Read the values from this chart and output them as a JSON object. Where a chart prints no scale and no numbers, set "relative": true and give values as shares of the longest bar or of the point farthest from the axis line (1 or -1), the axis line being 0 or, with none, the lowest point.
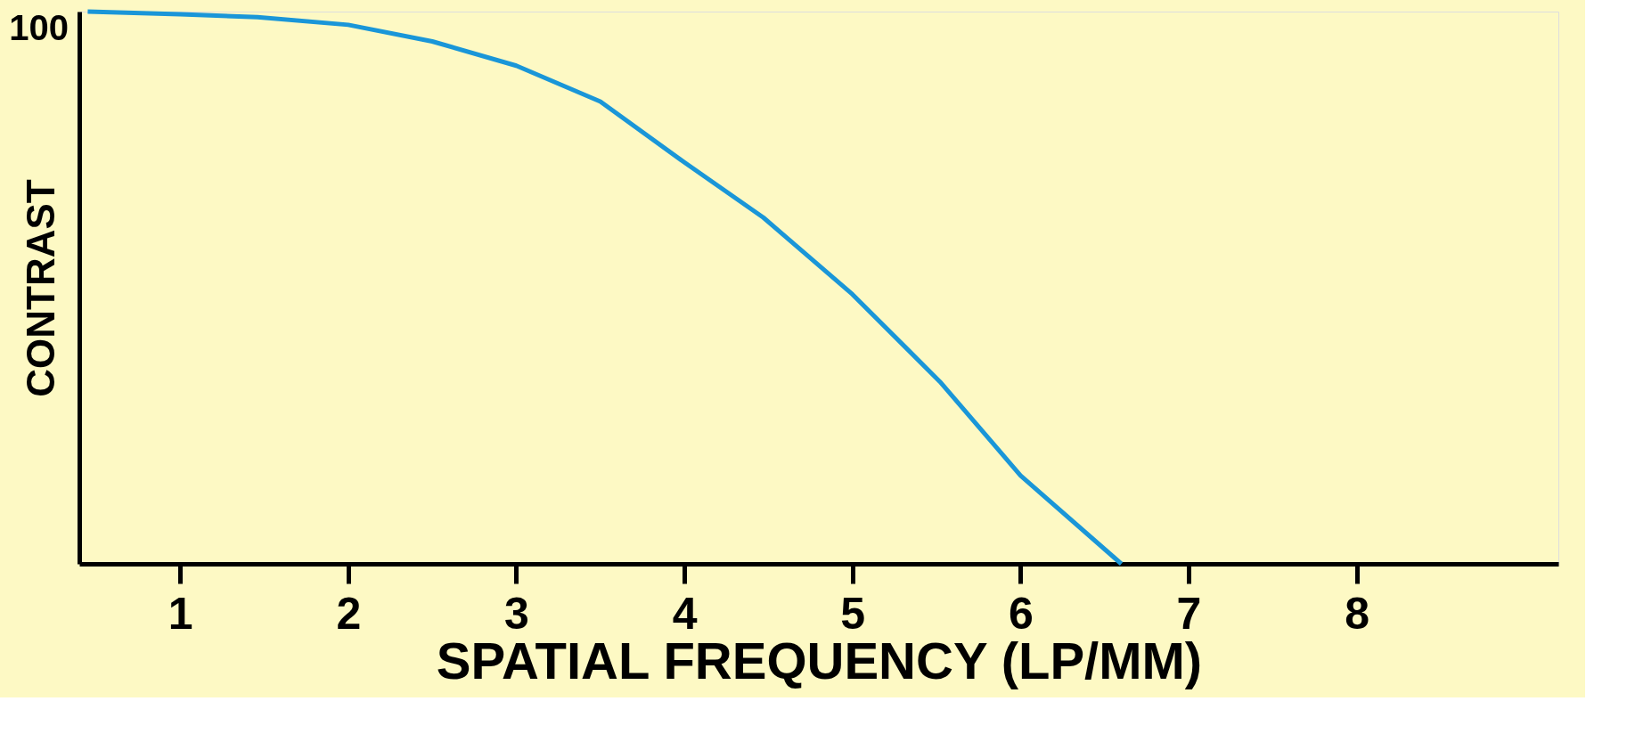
{
  "chart_data": {
    "type": "line",
    "relative": true,
    "xlabel": "SPATIAL FREQUENCY (LP/MM)",
    "ylabel": "CONTRAST",
    "annotations": [
      "100"
    ],
    "x": [
      0.45,
      1,
      1.46,
      2,
      2.5,
      3,
      3.5,
      4,
      4.47,
      5,
      5.52,
      6,
      6.6
    ],
    "xlim": [
      0.4,
      9.2
    ],
    "xticks": [
      1,
      2,
      3,
      4,
      5,
      6,
      7,
      8
    ],
    "series": [
      {
        "color": "#1a96d8",
        "values": [
          1.0,
          0.995,
          0.99,
          0.976,
          0.946,
          0.902,
          0.837,
          0.727,
          0.627,
          0.488,
          0.33,
          0.16,
          0.0
        ]
      }
    ],
    "grid": false,
    "marker": "none",
    "line_style": "solid"
  }
}
